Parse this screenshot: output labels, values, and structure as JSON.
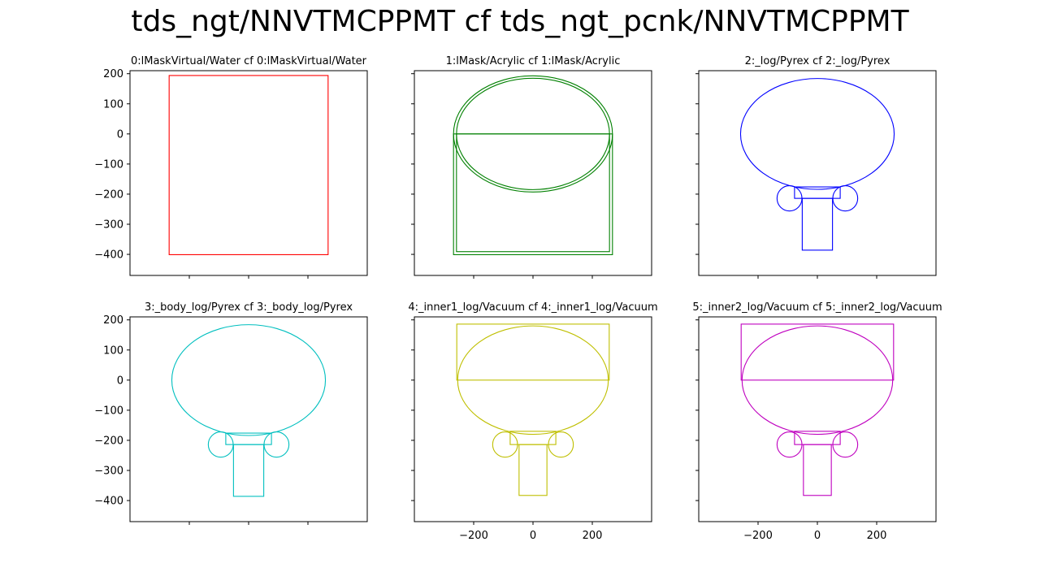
{
  "figure_title": "tds_ngt/NNVTMCPPMT cf tds_ngt_pcnk/NNVTMCPPMT",
  "chart_data": [
    {
      "type": "line",
      "title": "0:lMaskVirtual/Water cf 0:lMaskVirtual/Water",
      "color": "#ff0000",
      "xlim": [
        -400,
        400
      ],
      "ylim": [
        -470,
        210
      ],
      "xticks": [
        -200,
        0,
        200
      ],
      "yticks": [
        200,
        100,
        0,
        -100,
        -200,
        -300,
        -400
      ],
      "show_xticklabels": false,
      "show_yticklabels": true,
      "series": [
        {
          "shape": "rect",
          "x": [
            -268,
            268
          ],
          "y": [
            -401,
            194
          ]
        }
      ]
    },
    {
      "type": "line",
      "title": "1:lMask/Acrylic cf 1:lMask/Acrylic",
      "color": "#008000",
      "xlim": [
        -400,
        400
      ],
      "ylim": [
        -470,
        210
      ],
      "xticks": [
        -200,
        0,
        200
      ],
      "yticks": [
        200,
        100,
        0,
        -100,
        -200,
        -300,
        -400
      ],
      "show_xticklabels": false,
      "show_yticklabels": false,
      "series": [
        {
          "shape": "ellipse",
          "cx": 0,
          "cy": 0,
          "rx": 268,
          "ry": 193
        },
        {
          "shape": "ellipse",
          "cx": 0,
          "cy": 0,
          "rx": 258,
          "ry": 185
        },
        {
          "shape": "rect",
          "x": [
            -268,
            268
          ],
          "y": [
            -401,
            0
          ]
        },
        {
          "shape": "rect",
          "x": [
            -258,
            258
          ],
          "y": [
            -391,
            0
          ]
        }
      ]
    },
    {
      "type": "line",
      "title": "2:_log/Pyrex cf 2:_log/Pyrex",
      "color": "#0000ff",
      "xlim": [
        -400,
        400
      ],
      "ylim": [
        -470,
        210
      ],
      "xticks": [
        -200,
        0,
        200
      ],
      "yticks": [
        200,
        100,
        0,
        -100,
        -200,
        -300,
        -400
      ],
      "show_xticklabels": false,
      "show_yticklabels": false,
      "series": [
        {
          "shape": "ellipse",
          "cx": 0,
          "cy": 0,
          "rx": 259,
          "ry": 184
        },
        {
          "shape": "circle",
          "cx": -94,
          "cy": -214,
          "r": 42
        },
        {
          "shape": "circle",
          "cx": 94,
          "cy": -214,
          "r": 42
        },
        {
          "shape": "rect",
          "x": [
            -77,
            77
          ],
          "y": [
            -214,
            -176
          ]
        },
        {
          "shape": "rect",
          "x": [
            -51,
            51
          ],
          "y": [
            -386,
            -214
          ]
        }
      ]
    },
    {
      "type": "line",
      "title": "3:_body_log/Pyrex cf 3:_body_log/Pyrex",
      "color": "#00bfbf",
      "xlim": [
        -400,
        400
      ],
      "ylim": [
        -470,
        210
      ],
      "xticks": [
        -200,
        0,
        200
      ],
      "yticks": [
        200,
        100,
        0,
        -100,
        -200,
        -300,
        -400
      ],
      "show_xticklabels": false,
      "show_yticklabels": true,
      "series": [
        {
          "shape": "ellipse",
          "cx": 0,
          "cy": 0,
          "rx": 259,
          "ry": 184
        },
        {
          "shape": "circle",
          "cx": -94,
          "cy": -214,
          "r": 42
        },
        {
          "shape": "circle",
          "cx": 94,
          "cy": -214,
          "r": 42
        },
        {
          "shape": "rect",
          "x": [
            -77,
            77
          ],
          "y": [
            -214,
            -176
          ]
        },
        {
          "shape": "rect",
          "x": [
            -51,
            51
          ],
          "y": [
            -386,
            -214
          ]
        }
      ]
    },
    {
      "type": "line",
      "title": "4:_inner1_log/Vacuum cf 4:_inner1_log/Vacuum",
      "color": "#bfbf00",
      "xlim": [
        -400,
        400
      ],
      "ylim": [
        -470,
        210
      ],
      "xticks": [
        -200,
        0,
        200
      ],
      "yticks": [
        200,
        100,
        0,
        -100,
        -200,
        -300,
        -400
      ],
      "show_xticklabels": true,
      "show_yticklabels": false,
      "series": [
        {
          "shape": "ellipse",
          "cx": 0,
          "cy": 0,
          "rx": 254,
          "ry": 180
        },
        {
          "shape": "rect",
          "x": [
            -257,
            257
          ],
          "y": [
            0,
            186
          ]
        },
        {
          "shape": "circle",
          "cx": -94,
          "cy": -214,
          "r": 42
        },
        {
          "shape": "circle",
          "cx": 94,
          "cy": -214,
          "r": 42
        },
        {
          "shape": "rect",
          "x": [
            -77,
            77
          ],
          "y": [
            -214,
            -170
          ]
        },
        {
          "shape": "rect",
          "x": [
            -47,
            47
          ],
          "y": [
            -383,
            -214
          ]
        }
      ]
    },
    {
      "type": "line",
      "title": "5:_inner2_log/Vacuum cf 5:_inner2_log/Vacuum",
      "color": "#bf00bf",
      "xlim": [
        -400,
        400
      ],
      "ylim": [
        -470,
        210
      ],
      "xticks": [
        -200,
        0,
        200
      ],
      "yticks": [
        200,
        100,
        0,
        -100,
        -200,
        -300,
        -400
      ],
      "show_xticklabels": true,
      "show_yticklabels": false,
      "series": [
        {
          "shape": "ellipse",
          "cx": 0,
          "cy": 0,
          "rx": 254,
          "ry": 180
        },
        {
          "shape": "rect",
          "x": [
            -257,
            257
          ],
          "y": [
            0,
            186
          ]
        },
        {
          "shape": "circle",
          "cx": -94,
          "cy": -214,
          "r": 42
        },
        {
          "shape": "circle",
          "cx": 94,
          "cy": -214,
          "r": 42
        },
        {
          "shape": "rect",
          "x": [
            -77,
            77
          ],
          "y": [
            -214,
            -170
          ]
        },
        {
          "shape": "rect",
          "x": [
            -47,
            47
          ],
          "y": [
            -383,
            -214
          ]
        }
      ]
    }
  ]
}
